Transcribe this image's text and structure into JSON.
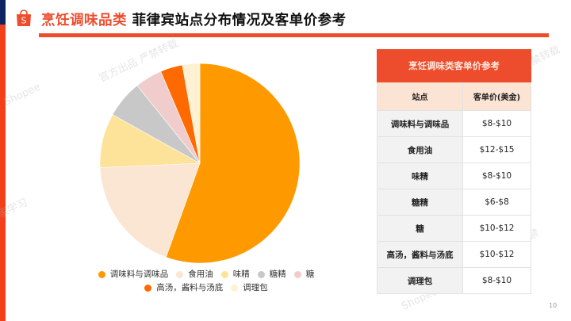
{
  "header": {
    "title_accent": "烹饪调味品类",
    "title_rest": "菲律宾站点分布情况及客单价参考",
    "logo_glyph": "S"
  },
  "colors": {
    "brand_orange": "#ee4d2d",
    "navy": "#0e2461",
    "side_red": "#f2401a"
  },
  "chart_data": {
    "type": "pie",
    "title": "",
    "categories": [
      "调味料与调味品",
      "食用油",
      "味精",
      "糖精",
      "糖",
      "高汤，酱料与汤底",
      "调理包"
    ],
    "values": [
      55.5,
      18.8,
      8.8,
      6.1,
      4.4,
      3.6,
      2.8
    ],
    "colors": [
      "#ff9900",
      "#fbe5d3",
      "#fde39a",
      "#c8c8c8",
      "#f1cccc",
      "#ff6a00",
      "#fff1d2"
    ],
    "start_angle": 0,
    "direction": "clockwise",
    "legend_position": "bottom",
    "unit": "% (estimated from slice angles)"
  },
  "legend": {
    "items": [
      {
        "label": "调味料与调味品",
        "color": "#ff9900"
      },
      {
        "label": "食用油",
        "color": "#fbe5d3"
      },
      {
        "label": "味精",
        "color": "#fde39a"
      },
      {
        "label": "糖精",
        "color": "#c8c8c8"
      },
      {
        "label": "糖",
        "color": "#f1cccc"
      },
      {
        "label": "高汤，酱料与汤底",
        "color": "#ff6a00"
      },
      {
        "label": "调理包",
        "color": "#fff1d2"
      }
    ]
  },
  "price_table": {
    "title": "烹饪调味类客单价参考",
    "columns": [
      "站点",
      "客单价(美金)"
    ],
    "rows": [
      {
        "site": "调味料与调味品",
        "price": "$8-$10"
      },
      {
        "site": "食用油",
        "price": "$12-$15"
      },
      {
        "site": "味精",
        "price": "$8-$10"
      },
      {
        "site": "糖精",
        "price": "$6-$8"
      },
      {
        "site": "糖",
        "price": "$10-$12"
      },
      {
        "site": "高汤，酱料与汤底",
        "price": "$10-$12"
      },
      {
        "site": "调理包",
        "price": "$8-$10"
      }
    ]
  },
  "footer": {
    "page_number": "10"
  },
  "watermarks": [
    "Shopee",
    "家学习",
    "官方出品 严禁转载",
    "严禁转载",
    "中心官方出品 严禁",
    "Shopee"
  ]
}
